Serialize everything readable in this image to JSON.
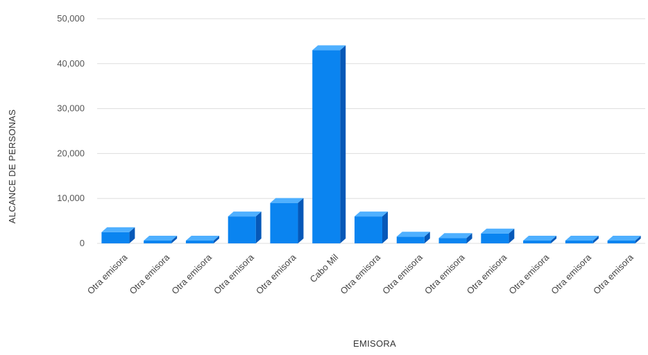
{
  "chart_data": {
    "type": "bar",
    "title": "",
    "xlabel": "EMISORA",
    "ylabel": "ALCANCE DE PERSONAS",
    "categories": [
      "Otra emisora",
      "Otra emisora",
      "Otra emisora",
      "Otra emisora",
      "Otra emisora",
      "Cabo Mil",
      "Otra emisora",
      "Otra emisora",
      "Otra emisora",
      "Otra emisora",
      "Otra emisora",
      "Otra emisora",
      "Otra emisora"
    ],
    "values": [
      2500,
      0,
      0,
      6000,
      9000,
      43000,
      6000,
      1500,
      1200,
      2200,
      0,
      0,
      0
    ],
    "ylim": [
      0,
      50000
    ],
    "yticks": [
      0,
      10000,
      20000,
      30000,
      40000,
      50000
    ],
    "ytick_labels": [
      "0",
      "10,000",
      "20,000",
      "30,000",
      "40,000",
      "50,000"
    ],
    "grid": true,
    "style": "3d-bar",
    "colors": {
      "bar_front": "#0a84f0",
      "bar_side": "#0658b8",
      "bar_top": "#4fb0ff",
      "grid": "#dddddd"
    }
  }
}
